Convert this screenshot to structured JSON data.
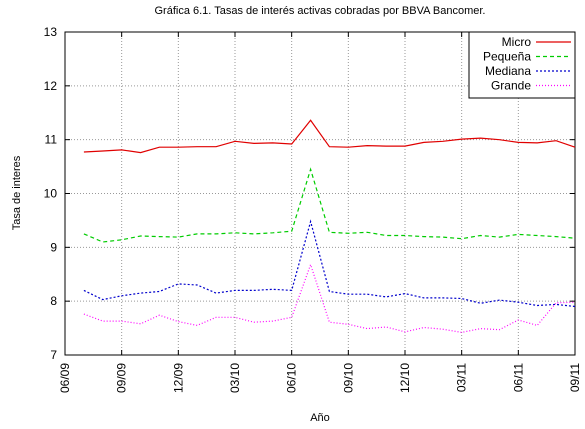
{
  "chart_data": {
    "type": "line",
    "title": "Gráfica 6.1. Tasas de interés activas cobradas por BBVA Bancomer.",
    "xlabel": "Año",
    "ylabel": "Tasa de interes",
    "x": [
      "07/09",
      "08/09",
      "09/09",
      "10/09",
      "11/09",
      "12/09",
      "01/10",
      "02/10",
      "03/10",
      "04/10",
      "05/10",
      "06/10",
      "07/10",
      "08/10",
      "09/10",
      "10/10",
      "11/10",
      "12/10",
      "01/11",
      "02/11",
      "03/11",
      "04/11",
      "05/11",
      "06/11",
      "07/11",
      "08/11",
      "09/11"
    ],
    "series": [
      {
        "name": "Micro",
        "color": "#e00000",
        "dash": "none",
        "values": [
          10.77,
          10.79,
          10.81,
          10.76,
          10.86,
          10.86,
          10.87,
          10.87,
          10.97,
          10.93,
          10.94,
          10.92,
          11.36,
          10.87,
          10.86,
          10.89,
          10.88,
          10.88,
          10.95,
          10.97,
          11.01,
          11.03,
          11.0,
          10.95,
          10.94,
          10.98,
          10.86
        ]
      },
      {
        "name": "Pequeña",
        "color": "#00cc00",
        "dash": "4 3",
        "values": [
          9.25,
          9.1,
          9.14,
          9.21,
          9.2,
          9.19,
          9.25,
          9.25,
          9.27,
          9.25,
          9.27,
          9.3,
          10.45,
          9.28,
          9.26,
          9.28,
          9.22,
          9.22,
          9.2,
          9.19,
          9.16,
          9.22,
          9.19,
          9.24,
          9.22,
          9.2,
          9.17
        ]
      },
      {
        "name": "Mediana",
        "color": "#0000cc",
        "dash": "2 2",
        "values": [
          8.2,
          8.03,
          8.1,
          8.15,
          8.18,
          8.32,
          8.3,
          8.15,
          8.2,
          8.2,
          8.22,
          8.2,
          9.48,
          8.18,
          8.13,
          8.13,
          8.08,
          8.14,
          8.06,
          8.06,
          8.05,
          7.96,
          8.02,
          7.98,
          7.92,
          7.94,
          7.9
        ]
      },
      {
        "name": "Grande",
        "color": "#ff00ff",
        "dash": "1 2",
        "values": [
          7.76,
          7.63,
          7.63,
          7.58,
          7.74,
          7.62,
          7.55,
          7.7,
          7.7,
          7.61,
          7.63,
          7.7,
          8.68,
          7.61,
          7.57,
          7.49,
          7.52,
          7.43,
          7.51,
          7.48,
          7.42,
          7.49,
          7.47,
          7.65,
          7.55,
          7.97,
          7.98
        ]
      }
    ],
    "xlim": [
      "06/09",
      "09/11"
    ],
    "xticks": [
      "06/09",
      "09/09",
      "12/09",
      "03/10",
      "06/10",
      "09/10",
      "12/10",
      "03/11",
      "06/11",
      "09/11"
    ],
    "ylim": [
      7,
      13
    ],
    "yticks": [
      7,
      8,
      9,
      10,
      11,
      12,
      13
    ],
    "grid": true,
    "legend": "upper right"
  }
}
